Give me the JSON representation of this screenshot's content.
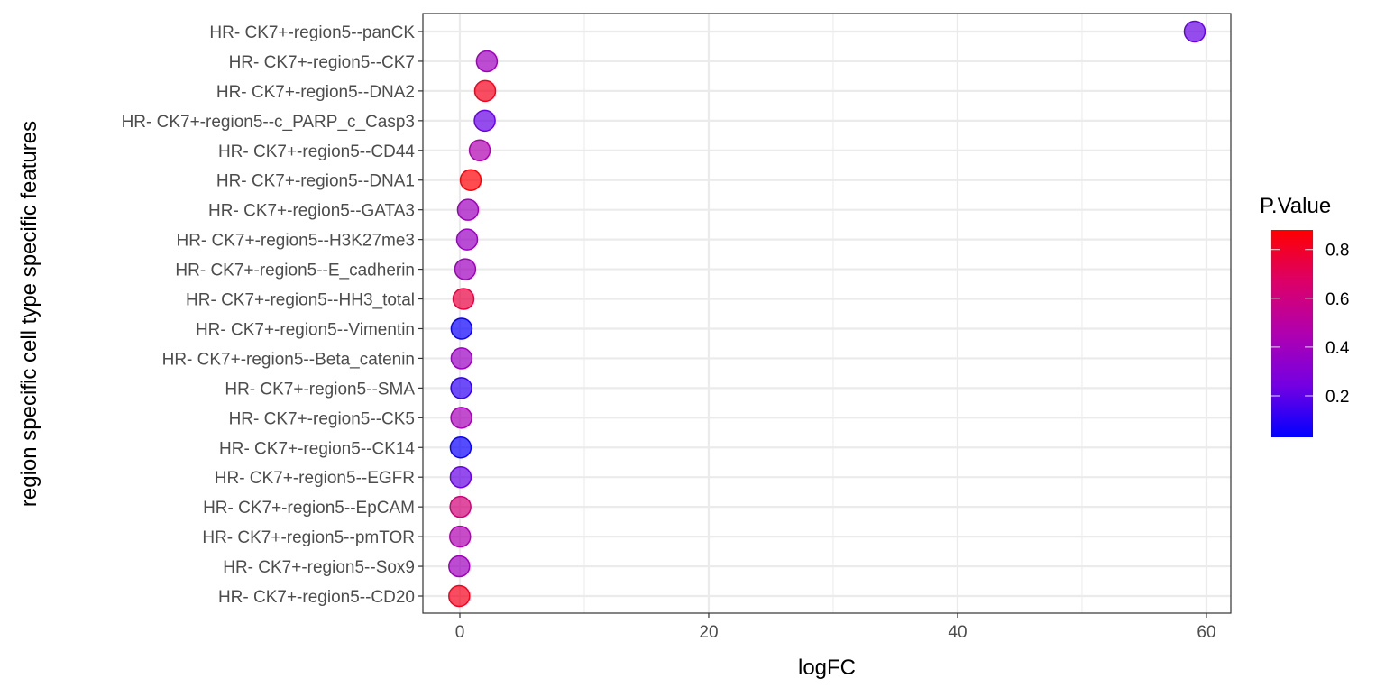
{
  "chart_data": {
    "type": "scatter",
    "title": "",
    "xlabel": "logFC",
    "ylabel": "region specific cell type specific features",
    "xlim": [
      -2.97,
      61.96
    ],
    "xticks": [
      0,
      20,
      40,
      60
    ],
    "grid": true,
    "legend": {
      "title": "P.Value",
      "placement": "right",
      "range": [
        0.03,
        0.88
      ],
      "ticks": [
        0.2,
        0.4,
        0.6,
        0.8
      ],
      "low_color": "#0000FF",
      "high_color": "#FF0000"
    },
    "points": [
      {
        "label": "HR- CK7+-region5--panCK",
        "logFC": 59.06,
        "p": 0.22
      },
      {
        "label": "HR- CK7+-region5--CK7",
        "logFC": 2.17,
        "p": 0.4
      },
      {
        "label": "HR- CK7+-region5--DNA2",
        "logFC": 2.03,
        "p": 0.82
      },
      {
        "label": "HR- CK7+-region5--c_PARP_c_Casp3",
        "logFC": 2.0,
        "p": 0.22
      },
      {
        "label": "HR- CK7+-region5--CD44",
        "logFC": 1.6,
        "p": 0.45
      },
      {
        "label": "HR- CK7+-region5--DNA1",
        "logFC": 0.87,
        "p": 0.87
      },
      {
        "label": "HR- CK7+-region5--GATA3",
        "logFC": 0.65,
        "p": 0.4
      },
      {
        "label": "HR- CK7+-region5--H3K27me3",
        "logFC": 0.58,
        "p": 0.38
      },
      {
        "label": "HR- CK7+-region5--E_cadherin",
        "logFC": 0.43,
        "p": 0.4
      },
      {
        "label": "HR- CK7+-region5--HH3_total",
        "logFC": 0.29,
        "p": 0.75
      },
      {
        "label": "HR- CK7+-region5--Vimentin",
        "logFC": 0.14,
        "p": 0.05
      },
      {
        "label": "HR- CK7+-region5--Beta_catenin",
        "logFC": 0.14,
        "p": 0.38
      },
      {
        "label": "HR- CK7+-region5--SMA",
        "logFC": 0.12,
        "p": 0.12
      },
      {
        "label": "HR- CK7+-region5--CK5",
        "logFC": 0.12,
        "p": 0.42
      },
      {
        "label": "HR- CK7+-region5--CK14",
        "logFC": 0.07,
        "p": 0.05
      },
      {
        "label": "HR- CK7+-region5--EGFR",
        "logFC": 0.07,
        "p": 0.22
      },
      {
        "label": "HR- CK7+-region5--EpCAM",
        "logFC": 0.05,
        "p": 0.62
      },
      {
        "label": "HR- CK7+-region5--pmTOR",
        "logFC": 0.02,
        "p": 0.45
      },
      {
        "label": "HR- CK7+-region5--Sox9",
        "logFC": -0.05,
        "p": 0.4
      },
      {
        "label": "HR- CK7+-region5--CD20",
        "logFC": -0.05,
        "p": 0.82
      }
    ]
  }
}
